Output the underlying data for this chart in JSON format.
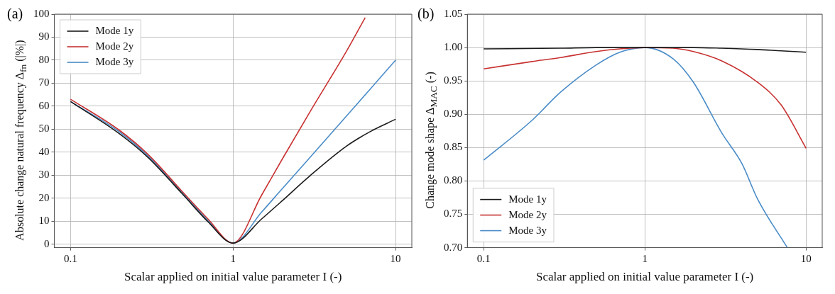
{
  "chart_data": [
    {
      "type": "line",
      "title": "(a)",
      "xlabel": "Scalar applied on initial value parameter I (-)",
      "ylabel": "Absolute change natural frequency Δ$_{fn}$ (|%|)",
      "log": "x",
      "xlim": [
        0.0794,
        12.59
      ],
      "xticks": [
        0.1,
        1,
        10
      ],
      "ylim": [
        -1.5,
        100
      ],
      "yticks": [
        0,
        10,
        20,
        30,
        40,
        50,
        60,
        70,
        80,
        90,
        100
      ],
      "grid": true,
      "legend": "top left",
      "marker": "none",
      "line_style": "solid",
      "series": [
        {
          "name": "Mode 1y",
          "color": "#1a1a1a",
          "x": [
            0.1,
            0.2,
            0.3,
            0.5,
            0.7,
            1,
            1.5,
            2,
            3,
            5,
            7,
            10
          ],
          "values": [
            62,
            48,
            37.7,
            21,
            9.8,
            0.5,
            11,
            18.8,
            30,
            42.7,
            49,
            54.3
          ]
        },
        {
          "name": "Mode 2y",
          "color": "#c83232",
          "x": [
            0.1,
            0.2,
            0.3,
            0.5,
            0.7,
            1,
            1.5,
            2,
            3,
            5,
            6.5
          ],
          "values": [
            63,
            49.5,
            39,
            22,
            11,
            0.5,
            21.4,
            36.8,
            58,
            84,
            98.5
          ]
        },
        {
          "name": "Mode 3y",
          "color": "#4a8cc8",
          "x": [
            0.1,
            0.2,
            0.3,
            0.5,
            0.7,
            1,
            1.5,
            2,
            3,
            5,
            7,
            10
          ],
          "values": [
            62,
            48.8,
            38.3,
            21.5,
            10.3,
            0.5,
            14,
            24,
            38,
            55.8,
            67.5,
            80
          ]
        }
      ]
    },
    {
      "type": "line",
      "title": "(b)",
      "xlabel": "Scalar applied on initial value parameter I (-)",
      "ylabel": "Change mode shape Δ$_{MAC}$ (-)",
      "log": "x",
      "xlim": [
        0.0794,
        12.59
      ],
      "xticks": [
        0.1,
        1,
        10
      ],
      "ylim": [
        0.7,
        1.05
      ],
      "yticks": [
        {
          "value": 0.7,
          "label": "0.70"
        },
        {
          "value": 0.75,
          "label": "0.75"
        },
        {
          "value": 0.8,
          "label": "0.80"
        },
        {
          "value": 0.85,
          "label": "0.85"
        },
        {
          "value": 0.9,
          "label": "0.90"
        },
        {
          "value": 0.95,
          "label": "0.95"
        },
        {
          "value": 1.0,
          "label": "1.00"
        },
        {
          "value": 1.05,
          "label": "1.05"
        }
      ],
      "grid": true,
      "legend": "bottom left",
      "marker": "none",
      "line_style": "solid",
      "series": [
        {
          "name": "Mode 1y",
          "color": "#1a1a1a",
          "x": [
            0.1,
            0.3,
            0.5,
            1,
            2,
            3,
            5,
            7,
            10
          ],
          "values": [
            0.998,
            0.999,
            1.0,
            1.0,
            1.0,
            0.999,
            0.997,
            0.995,
            0.993
          ]
        },
        {
          "name": "Mode 2y",
          "color": "#c83232",
          "x": [
            0.1,
            0.2,
            0.3,
            0.5,
            0.7,
            1,
            1.5,
            2,
            3,
            5,
            7,
            10
          ],
          "values": [
            0.968,
            0.979,
            0.985,
            0.994,
            0.998,
            1.0,
            0.999,
            0.994,
            0.98,
            0.948,
            0.914,
            0.849
          ]
        },
        {
          "name": "Mode 3y",
          "color": "#4a8cc8",
          "x": [
            0.1,
            0.2,
            0.3,
            0.5,
            0.7,
            1,
            1.5,
            2,
            3,
            4,
            5,
            7.65
          ],
          "values": [
            0.831,
            0.891,
            0.933,
            0.974,
            0.993,
            1.0,
            0.983,
            0.948,
            0.872,
            0.826,
            0.773,
            0.7
          ]
        }
      ]
    }
  ]
}
